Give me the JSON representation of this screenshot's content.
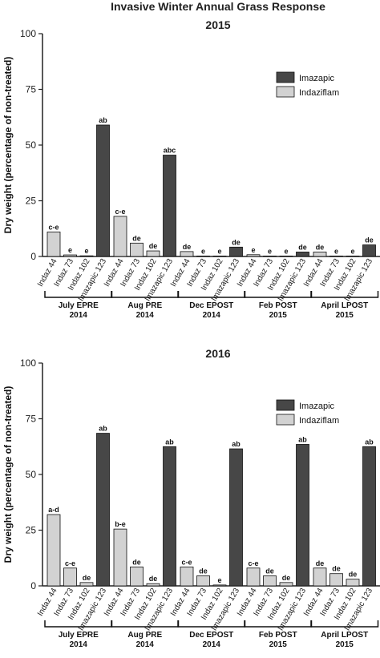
{
  "figure_title": "Invasive Winter Annual Grass Response",
  "colors": {
    "Imazapic": "#474747",
    "Indaziflam": "#d2d2d2",
    "axis": "#222222"
  },
  "chart_data": [
    {
      "type": "bar",
      "title": "2015",
      "ylabel": "Dry weight (percentage of non-treated)",
      "ylim": [
        0,
        100
      ],
      "yticks": [
        0,
        25,
        50,
        75,
        100
      ],
      "legend": {
        "position": "top-right",
        "entries": [
          "Imazapic",
          "Indaziflam"
        ]
      },
      "groups": [
        {
          "label_line1": "July EPRE",
          "label_line2": "2014",
          "bars": [
            {
              "category": "Indaz 44",
              "herbicide": "Indaziflam",
              "value": 11,
              "letter": "c-e"
            },
            {
              "category": "Indaz 73",
              "herbicide": "Indaziflam",
              "value": 0.7,
              "letter": "e"
            },
            {
              "category": "Indaz 102",
              "herbicide": "Indaziflam",
              "value": 0.3,
              "letter": "e"
            },
            {
              "category": "Imazapic 123",
              "herbicide": "Imazapic",
              "value": 59,
              "letter": "ab"
            }
          ]
        },
        {
          "label_line1": "Aug PRE",
          "label_line2": "2014",
          "bars": [
            {
              "category": "Indaz 44",
              "herbicide": "Indaziflam",
              "value": 18,
              "letter": "c-e"
            },
            {
              "category": "Indaz 73",
              "herbicide": "Indaziflam",
              "value": 6,
              "letter": "de"
            },
            {
              "category": "Indaz 102",
              "herbicide": "Indaziflam",
              "value": 2.5,
              "letter": "de"
            },
            {
              "category": "Imazapic 123",
              "herbicide": "Imazapic",
              "value": 45.5,
              "letter": "abc"
            }
          ]
        },
        {
          "label_line1": "Dec EPOST",
          "label_line2": "2014",
          "bars": [
            {
              "category": "Indaz 44",
              "herbicide": "Indaziflam",
              "value": 2.2,
              "letter": "de"
            },
            {
              "category": "Indaz 73",
              "herbicide": "Indaziflam",
              "value": 0.2,
              "letter": "e"
            },
            {
              "category": "Indaz 102",
              "herbicide": "Indaziflam",
              "value": 0.1,
              "letter": "e"
            },
            {
              "category": "Imazapic 123",
              "herbicide": "Imazapic",
              "value": 4.2,
              "letter": "de"
            }
          ]
        },
        {
          "label_line1": "Feb POST",
          "label_line2": "2015",
          "bars": [
            {
              "category": "Indaz 44",
              "herbicide": "Indaziflam",
              "value": 0.8,
              "letter": "e"
            },
            {
              "category": "Indaz 73",
              "herbicide": "Indaziflam",
              "value": 0.2,
              "letter": "e"
            },
            {
              "category": "Indaz 102",
              "herbicide": "Indaziflam",
              "value": 0.1,
              "letter": "e"
            },
            {
              "category": "Imazapic 123",
              "herbicide": "Imazapic",
              "value": 2,
              "letter": "de"
            }
          ]
        },
        {
          "label_line1": "April LPOST",
          "label_line2": "2015",
          "bars": [
            {
              "category": "Indaz 44",
              "herbicide": "Indaziflam",
              "value": 2,
              "letter": "de"
            },
            {
              "category": "Indaz 73",
              "herbicide": "Indaziflam",
              "value": 0.2,
              "letter": "e"
            },
            {
              "category": "Indaz 102",
              "herbicide": "Indaziflam",
              "value": 0.1,
              "letter": "e"
            },
            {
              "category": "Imazapic 123",
              "herbicide": "Imazapic",
              "value": 5.2,
              "letter": "de"
            }
          ]
        }
      ]
    },
    {
      "type": "bar",
      "title": "2016",
      "ylabel": "Dry weight (percentage of non-treated)",
      "ylim": [
        0,
        100
      ],
      "yticks": [
        0,
        25,
        50,
        75,
        100
      ],
      "legend": {
        "position": "top-right",
        "entries": [
          "Imazapic",
          "Indaziflam"
        ]
      },
      "groups": [
        {
          "label_line1": "July EPRE",
          "label_line2": "2014",
          "bars": [
            {
              "category": "Indaz 44",
              "herbicide": "Indaziflam",
              "value": 32,
              "letter": "a-d"
            },
            {
              "category": "Indaz 73",
              "herbicide": "Indaziflam",
              "value": 8,
              "letter": "c-e"
            },
            {
              "category": "Indaz 102",
              "herbicide": "Indaziflam",
              "value": 1.5,
              "letter": "de"
            },
            {
              "category": "Imazapic 123",
              "herbicide": "Imazapic",
              "value": 68.5,
              "letter": "ab"
            }
          ]
        },
        {
          "label_line1": "Aug PRE",
          "label_line2": "2014",
          "bars": [
            {
              "category": "Indaz 44",
              "herbicide": "Indaziflam",
              "value": 25.5,
              "letter": "b-e"
            },
            {
              "category": "Indaz 73",
              "herbicide": "Indaziflam",
              "value": 8.5,
              "letter": "de"
            },
            {
              "category": "Indaz 102",
              "herbicide": "Indaziflam",
              "value": 1,
              "letter": "de"
            },
            {
              "category": "Imazapic 123",
              "herbicide": "Imazapic",
              "value": 62.5,
              "letter": "ab"
            }
          ]
        },
        {
          "label_line1": "Dec EPOST",
          "label_line2": "2014",
          "bars": [
            {
              "category": "Indaz 44",
              "herbicide": "Indaziflam",
              "value": 8.5,
              "letter": "c-e"
            },
            {
              "category": "Indaz 73",
              "herbicide": "Indaziflam",
              "value": 4.5,
              "letter": "de"
            },
            {
              "category": "Indaz 102",
              "herbicide": "Indaziflam",
              "value": 0.4,
              "letter": "e"
            },
            {
              "category": "Imazapic 123",
              "herbicide": "Imazapic",
              "value": 61.5,
              "letter": "ab"
            }
          ]
        },
        {
          "label_line1": "Feb POST",
          "label_line2": "2015",
          "bars": [
            {
              "category": "Indaz 44",
              "herbicide": "Indaziflam",
              "value": 8,
              "letter": "c-e"
            },
            {
              "category": "Indaz 73",
              "herbicide": "Indaziflam",
              "value": 4.5,
              "letter": "de"
            },
            {
              "category": "Indaz 102",
              "herbicide": "Indaziflam",
              "value": 1.5,
              "letter": "de"
            },
            {
              "category": "Imazapic 123",
              "herbicide": "Imazapic",
              "value": 63.5,
              "letter": "ab"
            }
          ]
        },
        {
          "label_line1": "April LPOST",
          "label_line2": "2015",
          "bars": [
            {
              "category": "Indaz 44",
              "herbicide": "Indaziflam",
              "value": 8,
              "letter": "de"
            },
            {
              "category": "Indaz 73",
              "herbicide": "Indaziflam",
              "value": 5.5,
              "letter": "de"
            },
            {
              "category": "Indaz 102",
              "herbicide": "Indaziflam",
              "value": 3,
              "letter": "de"
            },
            {
              "category": "Imazapic 123",
              "herbicide": "Imazapic",
              "value": 62.5,
              "letter": "ab"
            }
          ]
        }
      ]
    }
  ]
}
